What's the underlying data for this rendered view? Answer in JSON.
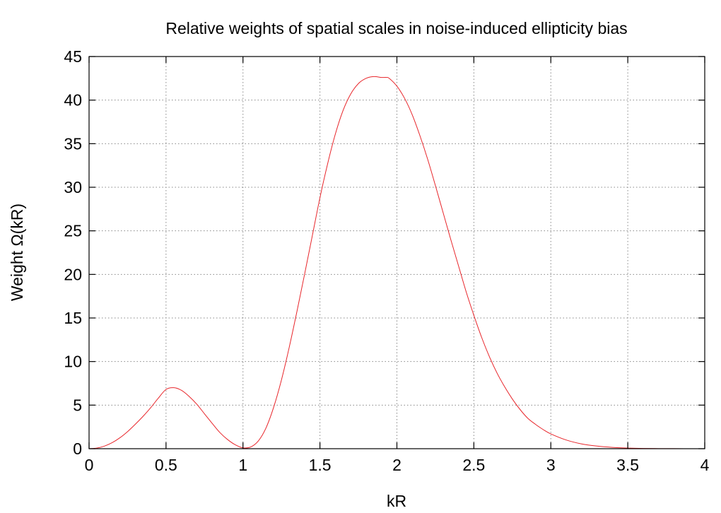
{
  "chart_data": {
    "type": "line",
    "title": "Relative weights of spatial scales in noise-induced ellipticity bias",
    "xlabel": "kR",
    "ylabel": "Weight Ω(kR)",
    "xlim": [
      0,
      4
    ],
    "ylim": [
      0,
      45
    ],
    "xticks": [
      0,
      0.5,
      1,
      1.5,
      2,
      2.5,
      3,
      3.5,
      4
    ],
    "xtick_labels": [
      "0",
      "0.5",
      "1",
      "1.5",
      "2",
      "2.5",
      "3",
      "3.5",
      "4"
    ],
    "yticks": [
      0,
      5,
      10,
      15,
      20,
      25,
      30,
      35,
      40,
      45
    ],
    "ytick_labels": [
      "0",
      "5",
      "10",
      "15",
      "20",
      "25",
      "30",
      "35",
      "40",
      "45"
    ],
    "grid": true,
    "legend": "none",
    "series": [
      {
        "color": "#e8262b",
        "x": [
          0,
          0.05,
          0.1,
          0.15,
          0.2,
          0.25,
          0.3,
          0.35,
          0.4,
          0.45,
          0.5,
          0.55,
          0.6,
          0.65,
          0.7,
          0.75,
          0.8,
          0.85,
          0.9,
          0.95,
          1.0,
          1.05,
          1.1,
          1.15,
          1.2,
          1.25,
          1.3,
          1.35,
          1.4,
          1.45,
          1.5,
          1.55,
          1.6,
          1.65,
          1.7,
          1.75,
          1.8,
          1.85,
          1.9,
          1.93,
          1.95,
          2.0,
          2.05,
          2.1,
          2.15,
          2.2,
          2.25,
          2.3,
          2.35,
          2.4,
          2.45,
          2.5,
          2.55,
          2.6,
          2.65,
          2.7,
          2.75,
          2.8,
          2.85,
          2.9,
          2.95,
          3.0,
          3.1,
          3.2,
          3.3,
          3.4,
          3.5,
          3.6,
          3.7,
          3.8,
          3.9,
          4.0
        ],
        "y": [
          0,
          0.07,
          0.3,
          0.69,
          1.25,
          1.96,
          2.8,
          3.7,
          4.7,
          5.8,
          6.8,
          7.0,
          6.7,
          6.0,
          5.1,
          4.0,
          2.9,
          1.85,
          1.05,
          0.45,
          0.1,
          0.2,
          0.9,
          2.4,
          4.8,
          7.9,
          11.6,
          15.7,
          20.0,
          24.4,
          28.8,
          32.7,
          36.1,
          38.8,
          40.7,
          41.9,
          42.5,
          42.7,
          42.6,
          42.6,
          42.5,
          41.6,
          40.2,
          38.3,
          35.9,
          33.2,
          30.2,
          27.1,
          24.0,
          21.0,
          18.0,
          15.3,
          12.8,
          10.6,
          8.7,
          7.1,
          5.7,
          4.5,
          3.5,
          2.8,
          2.2,
          1.7,
          1.0,
          0.55,
          0.3,
          0.15,
          0.07,
          0.03,
          0.015,
          0.006,
          0.002,
          0.001
        ]
      }
    ]
  }
}
